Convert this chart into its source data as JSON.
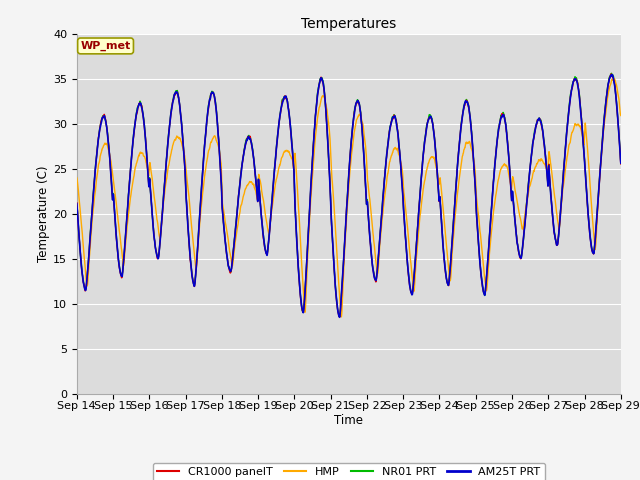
{
  "title": "Temperatures",
  "xlabel": "Time",
  "ylabel": "Temperature (C)",
  "annotation": "WP_met",
  "ylim": [
    0,
    40
  ],
  "yticks": [
    0,
    5,
    10,
    15,
    20,
    25,
    30,
    35,
    40
  ],
  "xtick_labels": [
    "Sep 14",
    "Sep 15",
    "Sep 16",
    "Sep 17",
    "Sep 18",
    "Sep 19",
    "Sep 20",
    "Sep 21",
    "Sep 22",
    "Sep 23",
    "Sep 24",
    "Sep 25",
    "Sep 26",
    "Sep 27",
    "Sep 28",
    "Sep 29"
  ],
  "series_colors": {
    "CR1000 panelT": "#dd0000",
    "HMP": "#ffaa00",
    "NR01 PRT": "#00bb00",
    "AM25T PRT": "#0000cc"
  },
  "bg_color": "#dcdcdc",
  "grid_color": "#ffffff",
  "daily_max": [
    30.8,
    32.2,
    33.5,
    33.5,
    28.5,
    33.0,
    35.0,
    32.5,
    30.8,
    30.8,
    32.5,
    31.0,
    30.5,
    35.0,
    35.5
  ],
  "daily_min": [
    11.5,
    13.0,
    15.0,
    12.0,
    13.5,
    15.5,
    9.0,
    8.5,
    12.5,
    11.0,
    12.0,
    11.0,
    15.0,
    16.5,
    15.5
  ],
  "hmp_max_offset": [
    -3.0,
    -5.5,
    -5.0,
    -5.0,
    -5.0,
    -6.0,
    -2.0,
    -1.5,
    -3.5,
    -4.5,
    -4.5,
    -5.5,
    -4.5,
    -5.0,
    -0.5
  ],
  "hmp_min_offset": [
    0.0,
    1.0,
    2.0,
    1.5,
    0.5,
    2.0,
    -0.5,
    -0.5,
    0.5,
    0.0,
    0.0,
    0.0,
    3.0,
    1.5,
    0.0
  ],
  "samples_per_day": 144
}
